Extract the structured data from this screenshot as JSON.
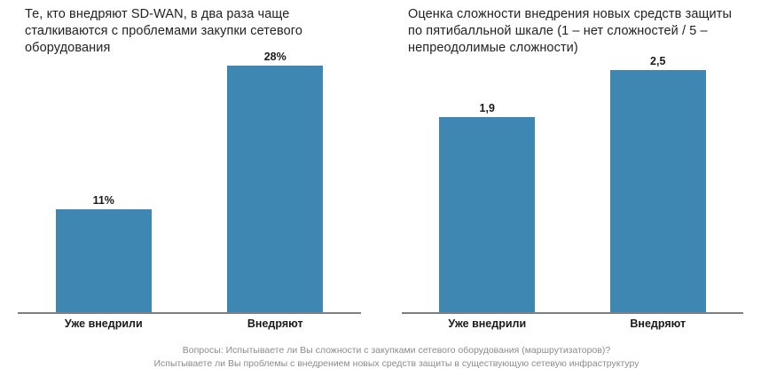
{
  "colors": {
    "bar": "#3E87B2",
    "axis": "#7F7F7F",
    "title_text": "#222222",
    "footnote_text": "#8C8C8C"
  },
  "chart_data": [
    {
      "type": "bar",
      "title": "Те, кто внедряют SD-WAN, в два раза чаще сталкиваются с проблемами закупки сетевого оборудования",
      "categories": [
        "Уже внедрили",
        "Внедряют"
      ],
      "values": [
        11,
        28
      ],
      "value_labels": [
        "11%",
        "28%"
      ],
      "xlabel": "",
      "ylabel": "",
      "ylim": [
        0,
        28
      ],
      "grid": false,
      "legend": "none",
      "bar_color": "#3E87B2"
    },
    {
      "type": "bar",
      "title": "Оценка сложности внедрения новых средств защиты по пятибалльной шкале (1 – нет сложностей / 5 – непреодолимые сложности)",
      "categories": [
        "Уже внедрили",
        "Внедряют"
      ],
      "values": [
        1.9,
        2.5
      ],
      "value_labels": [
        "1,9",
        "2,5"
      ],
      "xlabel": "",
      "ylabel": "",
      "ylim": [
        0,
        2.5
      ],
      "grid": false,
      "legend": "none",
      "bar_color": "#3E87B2"
    }
  ],
  "footnote": {
    "line1": "Вопросы: Испытываете ли Вы сложности с закупками сетевого оборудования (маршрутизаторов)?",
    "line2": "Испытываете ли Вы проблемы с внедрением новых средств защиты в существующую сетевую инфраструктуру"
  }
}
